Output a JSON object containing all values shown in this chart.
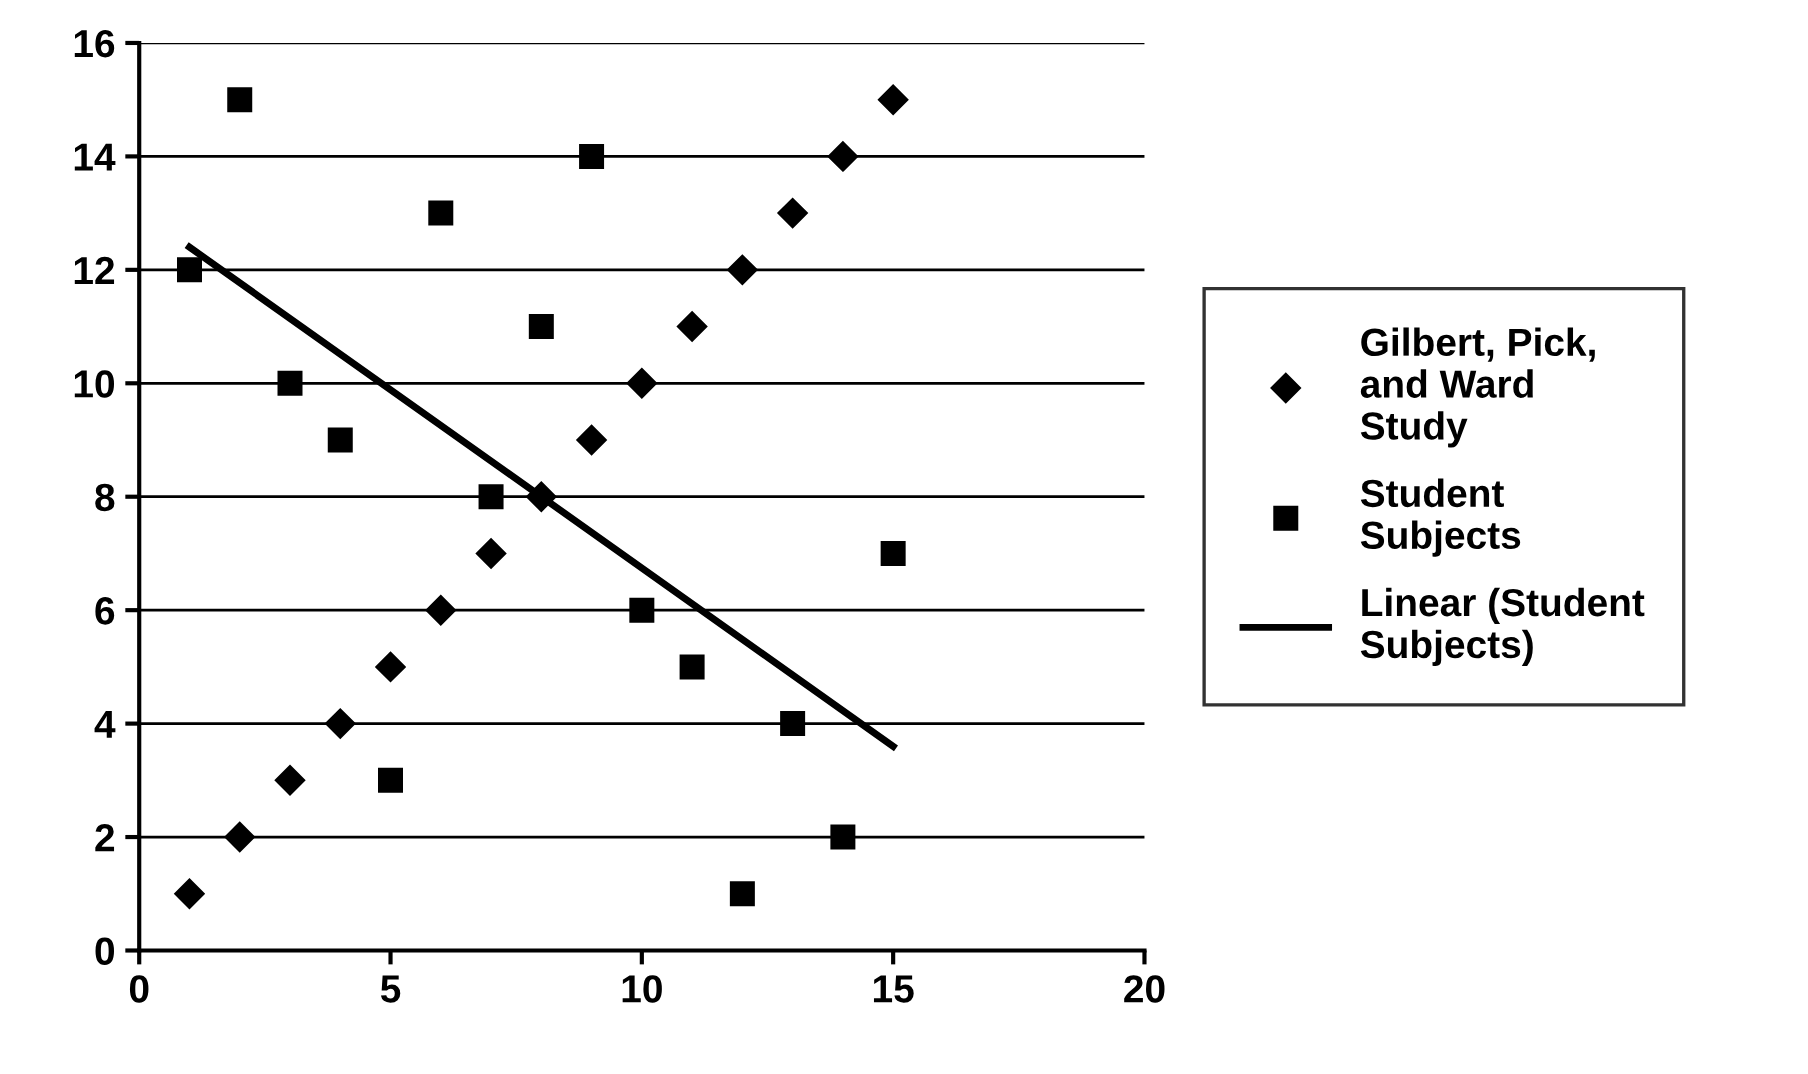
{
  "chart_data": {
    "type": "scatter",
    "xlim": [
      0,
      20
    ],
    "xticks": [
      0,
      5,
      10,
      15,
      20
    ],
    "ylim": [
      0,
      16
    ],
    "yticks": [
      0,
      2,
      4,
      6,
      8,
      10,
      12,
      14,
      16
    ],
    "grid": "y",
    "legend": "right",
    "series": [
      {
        "name": "Gilbert, Pick,\nand Ward\nStudy",
        "color": "#000000",
        "marker": "diamond",
        "x": [
          1,
          2,
          3,
          4,
          5,
          6,
          7,
          8,
          9,
          10,
          11,
          12,
          13,
          14,
          15
        ],
        "values": [
          1,
          2,
          3,
          4,
          5,
          6,
          7,
          8,
          9,
          10,
          11,
          12,
          13,
          14,
          15
        ]
      },
      {
        "name": "Student\nSubjects",
        "color": "#000000",
        "marker": "square",
        "x": [
          1,
          2,
          3,
          4,
          5,
          6,
          7,
          8,
          9,
          10,
          11,
          12,
          13,
          14,
          15
        ],
        "values": [
          12,
          15,
          10,
          9,
          3,
          13,
          8,
          11,
          14,
          6,
          5,
          1,
          4,
          2,
          7
        ]
      },
      {
        "name": "Linear (Student\nSubjects)",
        "type": "line",
        "color": "#000000",
        "marker": "none",
        "line_style": "solid",
        "x": [
          1,
          15
        ],
        "values": [
          12.4,
          3.6
        ]
      }
    ]
  }
}
